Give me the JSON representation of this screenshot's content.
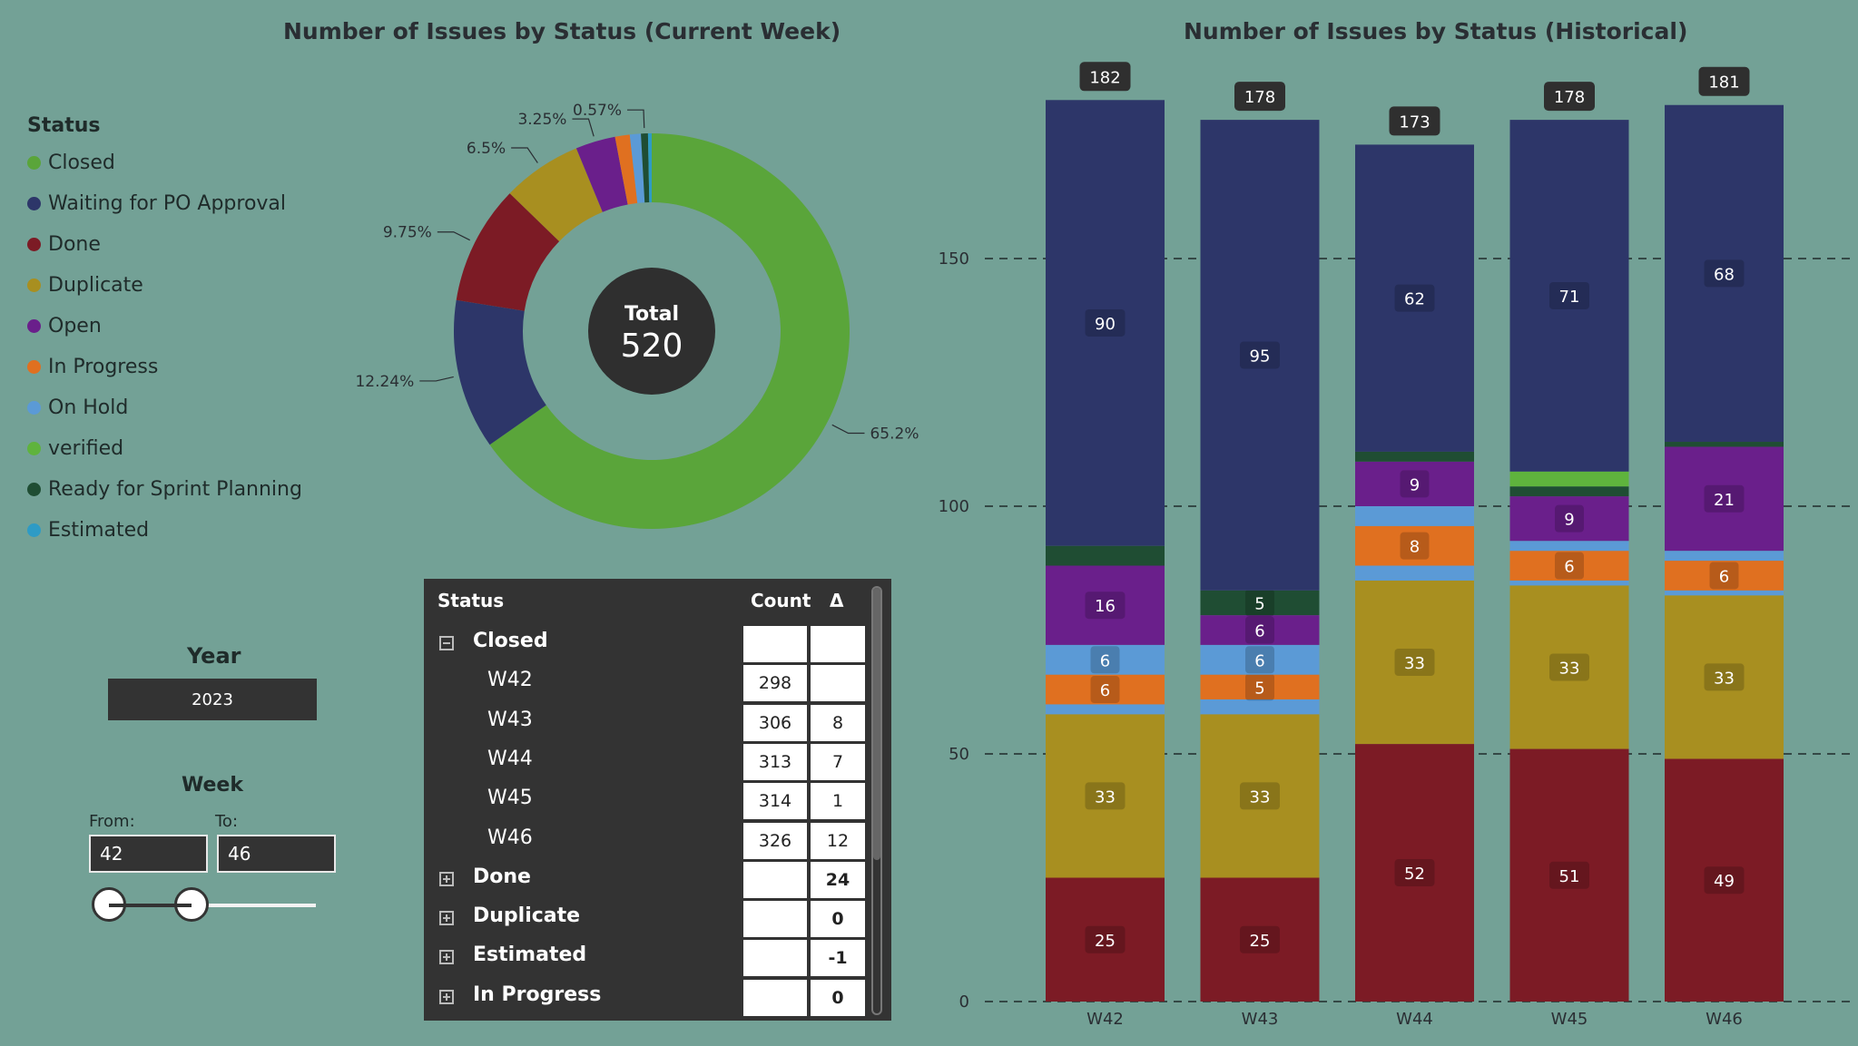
{
  "donut_title": "Number of Issues by Status (Current Week)",
  "bar_title": "Number of Issues by Status (Historical)",
  "legend": {
    "title": "Status",
    "items": [
      {
        "label": "Closed",
        "color": "#5aa53a"
      },
      {
        "label": "Waiting for PO Approval",
        "color": "#2d3669"
      },
      {
        "label": "Done",
        "color": "#7c1b25"
      },
      {
        "label": "Duplicate",
        "color": "#a88f20"
      },
      {
        "label": "Open",
        "color": "#6a1f8b"
      },
      {
        "label": "In Progress",
        "color": "#e07020"
      },
      {
        "label": "On Hold",
        "color": "#5b9ad6"
      },
      {
        "label": "verified",
        "color": "#5fb33d"
      },
      {
        "label": "Ready for Sprint Planning",
        "color": "#1f4d33"
      },
      {
        "label": "Estimated",
        "color": "#2e9bc5"
      }
    ]
  },
  "filters": {
    "year_label": "Year",
    "year_value": "2023",
    "week_label": "Week",
    "from_label": "From:",
    "to_label": "To:",
    "from_value": "42",
    "to_value": "46",
    "slider_range": [
      42,
      46
    ],
    "slider_min": 42,
    "slider_max": 52
  },
  "matrix": {
    "headers": {
      "status": "Status",
      "count": "Count",
      "delta": "Δ"
    },
    "rows": [
      {
        "label": "Closed",
        "level": 0,
        "expander": "collapse",
        "count": "",
        "delta": ""
      },
      {
        "label": "W42",
        "level": 1,
        "expander": "",
        "count": "298",
        "delta": ""
      },
      {
        "label": "W43",
        "level": 1,
        "expander": "",
        "count": "306",
        "delta": "8"
      },
      {
        "label": "W44",
        "level": 1,
        "expander": "",
        "count": "313",
        "delta": "7"
      },
      {
        "label": "W45",
        "level": 1,
        "expander": "",
        "count": "314",
        "delta": "1"
      },
      {
        "label": "W46",
        "level": 1,
        "expander": "",
        "count": "326",
        "delta": "12"
      },
      {
        "label": "Done",
        "level": 0,
        "expander": "expand",
        "count": "",
        "delta": "24"
      },
      {
        "label": "Duplicate",
        "level": 0,
        "expander": "expand",
        "count": "",
        "delta": "0"
      },
      {
        "label": "Estimated",
        "level": 0,
        "expander": "expand",
        "count": "",
        "delta": "-1"
      },
      {
        "label": "In Progress",
        "level": 0,
        "expander": "expand",
        "count": "",
        "delta": "0"
      }
    ]
  },
  "chart_data": [
    {
      "type": "pie",
      "title": "Number of Issues by Status (Current Week)",
      "center_label": "Total",
      "center_value": "520",
      "slices": [
        {
          "label": "Closed",
          "value": 65.2,
          "display": "65.2%",
          "color": "#5aa53a"
        },
        {
          "label": "Waiting for PO Approval",
          "value": 12.24,
          "display": "12.24%",
          "color": "#2d3669"
        },
        {
          "label": "Done",
          "value": 9.75,
          "display": "9.75%",
          "color": "#7c1b25"
        },
        {
          "label": "Duplicate",
          "value": 6.5,
          "display": "6.5%",
          "color": "#a88f20"
        },
        {
          "label": "Open",
          "value": 3.25,
          "display": "3.25%",
          "color": "#6a1f8b"
        },
        {
          "label": "In Progress",
          "value": 1.2,
          "display": "",
          "color": "#e07020"
        },
        {
          "label": "On Hold",
          "value": 0.9,
          "display": "",
          "color": "#5b9ad6"
        },
        {
          "label": "Ready for Sprint Planning",
          "value": 0.57,
          "display": "0.57%",
          "color": "#1f4d33"
        },
        {
          "label": "Estimated",
          "value": 0.3,
          "display": "",
          "color": "#2e9bc5"
        }
      ]
    },
    {
      "type": "bar",
      "stacked": true,
      "title": "Number of Issues by Status (Historical)",
      "categories": [
        "W42",
        "W43",
        "W44",
        "W45",
        "W46"
      ],
      "ylim": [
        0,
        182
      ],
      "yticks": [
        0,
        50,
        100,
        150
      ],
      "grid": "dashed horizontal",
      "totals": [
        182,
        178,
        173,
        178,
        181
      ],
      "series": [
        {
          "name": "Done",
          "color": "#7c1b25",
          "values": [
            25,
            25,
            52,
            51,
            49
          ],
          "labels": [
            "25",
            "25",
            "52",
            "51",
            "49"
          ]
        },
        {
          "name": "Duplicate",
          "color": "#a88f20",
          "values": [
            33,
            33,
            33,
            33,
            33
          ],
          "labels": [
            "33",
            "33",
            "33",
            "33",
            "33"
          ]
        },
        {
          "name": "On Hold",
          "color": "#5b9ad6",
          "values": [
            2,
            3,
            3,
            1,
            1
          ],
          "labels": [
            "",
            "",
            "",
            "",
            ""
          ]
        },
        {
          "name": "In Progress",
          "color": "#e07020",
          "values": [
            6,
            5,
            8,
            6,
            6
          ],
          "labels": [
            "6",
            "5",
            "8",
            "6",
            "6"
          ]
        },
        {
          "name": "Estimated",
          "color": "#5b9ad6",
          "values": [
            6,
            6,
            4,
            2,
            2
          ],
          "labels": [
            "6",
            "6",
            "",
            "",
            ""
          ]
        },
        {
          "name": "Open",
          "color": "#6a1f8b",
          "values": [
            16,
            6,
            9,
            9,
            21
          ],
          "labels": [
            "16",
            "6",
            "9",
            "9",
            "21"
          ]
        },
        {
          "name": "Ready for Sprint Planning",
          "color": "#1f4d33",
          "values": [
            4,
            5,
            2,
            2,
            1
          ],
          "labels": [
            "",
            "5",
            "",
            "",
            ""
          ]
        },
        {
          "name": "verified",
          "color": "#5fb33d",
          "values": [
            0,
            0,
            0,
            3,
            0
          ],
          "labels": [
            "",
            "",
            "",
            "",
            ""
          ]
        },
        {
          "name": "Waiting for PO Approval",
          "color": "#2d3669",
          "values": [
            90,
            95,
            62,
            71,
            68
          ],
          "labels": [
            "90",
            "95",
            "62",
            "71",
            "68"
          ]
        }
      ]
    }
  ]
}
